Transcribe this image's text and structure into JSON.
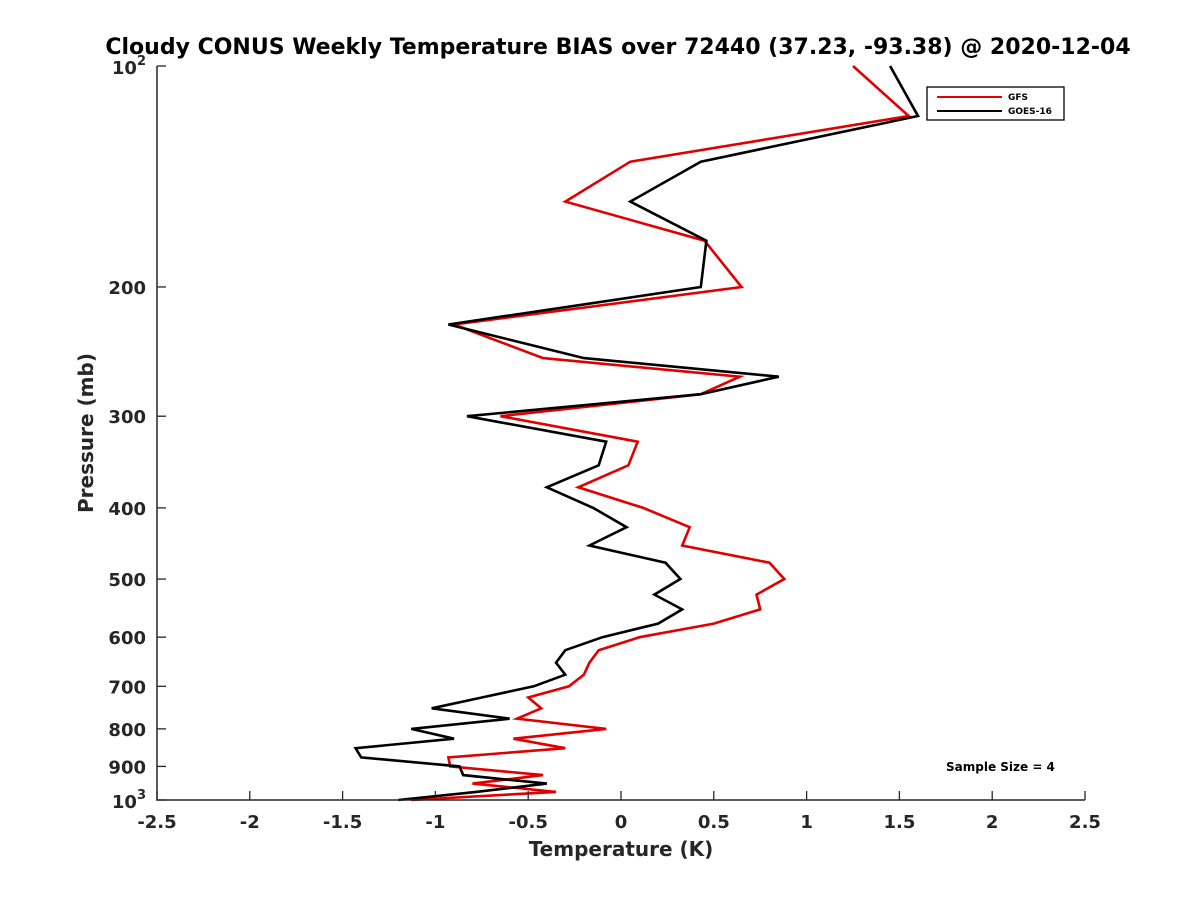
{
  "chart_data": {
    "type": "line",
    "title": "Cloudy CONUS Weekly Temperature BIAS over 72440 (37.23, -93.38) @ 2020-12-04",
    "xlabel": "Temperature (K)",
    "ylabel": "Pressure (mb)",
    "xlim": [
      -2.5,
      2.5
    ],
    "ylim": [
      100,
      1000
    ],
    "y_scale": "log",
    "y_reversed": true,
    "x_ticks": [
      "-2.5",
      "-2",
      "-1.5",
      "-1",
      "-0.5",
      "0",
      "0.5",
      "1",
      "1.5",
      "2",
      "2.5"
    ],
    "y_ticks_plain": [
      "200",
      "300",
      "400",
      "500",
      "600",
      "700",
      "800",
      "900"
    ],
    "y_ticks_exp": [
      {
        "value": 100,
        "base": "10",
        "exp": "2"
      },
      {
        "value": 1000,
        "base": "10",
        "exp": "3"
      }
    ],
    "legend_position": "top-right",
    "annotation": "Sample Size = 4",
    "grid": false,
    "series": [
      {
        "name": "GFS",
        "color": "#e00000",
        "points": [
          {
            "x": 1.25,
            "p": 100
          },
          {
            "x": 1.55,
            "p": 117
          },
          {
            "x": 0.05,
            "p": 135
          },
          {
            "x": -0.3,
            "p": 153
          },
          {
            "x": 0.45,
            "p": 173
          },
          {
            "x": 0.65,
            "p": 200
          },
          {
            "x": -0.9,
            "p": 225
          },
          {
            "x": -0.42,
            "p": 250
          },
          {
            "x": 0.64,
            "p": 265
          },
          {
            "x": 0.43,
            "p": 280
          },
          {
            "x": -0.65,
            "p": 300
          },
          {
            "x": 0.09,
            "p": 325
          },
          {
            "x": 0.04,
            "p": 350
          },
          {
            "x": -0.23,
            "p": 375
          },
          {
            "x": 0.12,
            "p": 400
          },
          {
            "x": 0.37,
            "p": 425
          },
          {
            "x": 0.33,
            "p": 450
          },
          {
            "x": 0.8,
            "p": 475
          },
          {
            "x": 0.88,
            "p": 500
          },
          {
            "x": 0.73,
            "p": 525
          },
          {
            "x": 0.75,
            "p": 550
          },
          {
            "x": 0.5,
            "p": 575
          },
          {
            "x": 0.1,
            "p": 600
          },
          {
            "x": -0.12,
            "p": 625
          },
          {
            "x": -0.17,
            "p": 650
          },
          {
            "x": -0.2,
            "p": 675
          },
          {
            "x": -0.28,
            "p": 700
          },
          {
            "x": -0.5,
            "p": 725
          },
          {
            "x": -0.43,
            "p": 750
          },
          {
            "x": -0.56,
            "p": 775
          },
          {
            "x": -0.08,
            "p": 800
          },
          {
            "x": -0.58,
            "p": 825
          },
          {
            "x": -0.3,
            "p": 850
          },
          {
            "x": -0.93,
            "p": 875
          },
          {
            "x": -0.92,
            "p": 900
          },
          {
            "x": -0.42,
            "p": 925
          },
          {
            "x": -0.8,
            "p": 950
          },
          {
            "x": -0.35,
            "p": 975
          },
          {
            "x": -1.13,
            "p": 1000
          }
        ]
      },
      {
        "name": "GOES-16",
        "color": "#000000",
        "points": [
          {
            "x": 1.45,
            "p": 100
          },
          {
            "x": 1.6,
            "p": 117
          },
          {
            "x": 0.43,
            "p": 135
          },
          {
            "x": 0.05,
            "p": 153
          },
          {
            "x": 0.46,
            "p": 173
          },
          {
            "x": 0.43,
            "p": 200
          },
          {
            "x": -0.93,
            "p": 225
          },
          {
            "x": -0.2,
            "p": 250
          },
          {
            "x": 0.85,
            "p": 265
          },
          {
            "x": 0.43,
            "p": 280
          },
          {
            "x": -0.83,
            "p": 300
          },
          {
            "x": -0.08,
            "p": 325
          },
          {
            "x": -0.12,
            "p": 350
          },
          {
            "x": -0.4,
            "p": 375
          },
          {
            "x": -0.15,
            "p": 400
          },
          {
            "x": 0.03,
            "p": 425
          },
          {
            "x": -0.17,
            "p": 450
          },
          {
            "x": 0.24,
            "p": 475
          },
          {
            "x": 0.32,
            "p": 500
          },
          {
            "x": 0.18,
            "p": 525
          },
          {
            "x": 0.33,
            "p": 550
          },
          {
            "x": 0.2,
            "p": 575
          },
          {
            "x": -0.1,
            "p": 600
          },
          {
            "x": -0.3,
            "p": 625
          },
          {
            "x": -0.35,
            "p": 650
          },
          {
            "x": -0.3,
            "p": 675
          },
          {
            "x": -0.47,
            "p": 700
          },
          {
            "x": -0.75,
            "p": 725
          },
          {
            "x": -1.02,
            "p": 750
          },
          {
            "x": -0.6,
            "p": 775
          },
          {
            "x": -1.13,
            "p": 800
          },
          {
            "x": -0.9,
            "p": 825
          },
          {
            "x": -1.43,
            "p": 850
          },
          {
            "x": -1.4,
            "p": 875
          },
          {
            "x": -0.87,
            "p": 900
          },
          {
            "x": -0.85,
            "p": 925
          },
          {
            "x": -0.4,
            "p": 950
          },
          {
            "x": -0.78,
            "p": 975
          },
          {
            "x": -1.2,
            "p": 1000
          }
        ]
      }
    ]
  }
}
